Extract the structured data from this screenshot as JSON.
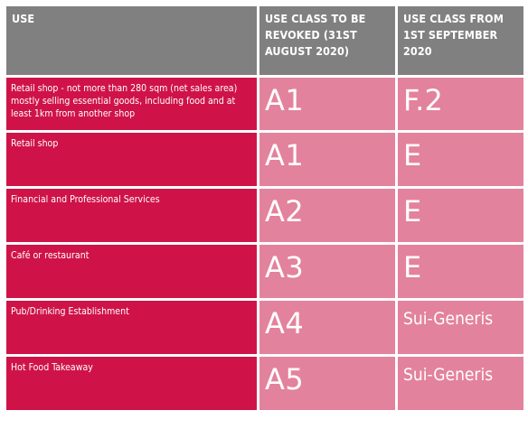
{
  "header": {
    "use": "USE",
    "revoked": "USE CLASS TO BE REVOKED (31ST AUGUST 2020)",
    "new": "USE CLASS FROM 1ST SEPTEMBER 2020"
  },
  "rows": [
    {
      "use": "Retail shop - not more than 280 sqm (net sales area) mostly selling essential goods, including food and at least 1km from another shop",
      "revoked": "A1",
      "new": "F.2"
    },
    {
      "use": "Retail shop",
      "revoked": "A1",
      "new": "E"
    },
    {
      "use": "Financial and Professional Services",
      "revoked": "A2",
      "new": "E"
    },
    {
      "use": "Café or restaurant",
      "revoked": "A3",
      "new": "E"
    },
    {
      "use": "Pub/Drinking Establishment",
      "revoked": "A4",
      "new": "Sui-Generis"
    },
    {
      "use": "Hot Food Takeaway",
      "revoked": "A5",
      "new": "Sui-Generis"
    }
  ],
  "colors": {
    "header_bg": "#808080",
    "use_bg": "#cf1348",
    "class_bg": "#e3829c",
    "text": "#ffffff"
  }
}
